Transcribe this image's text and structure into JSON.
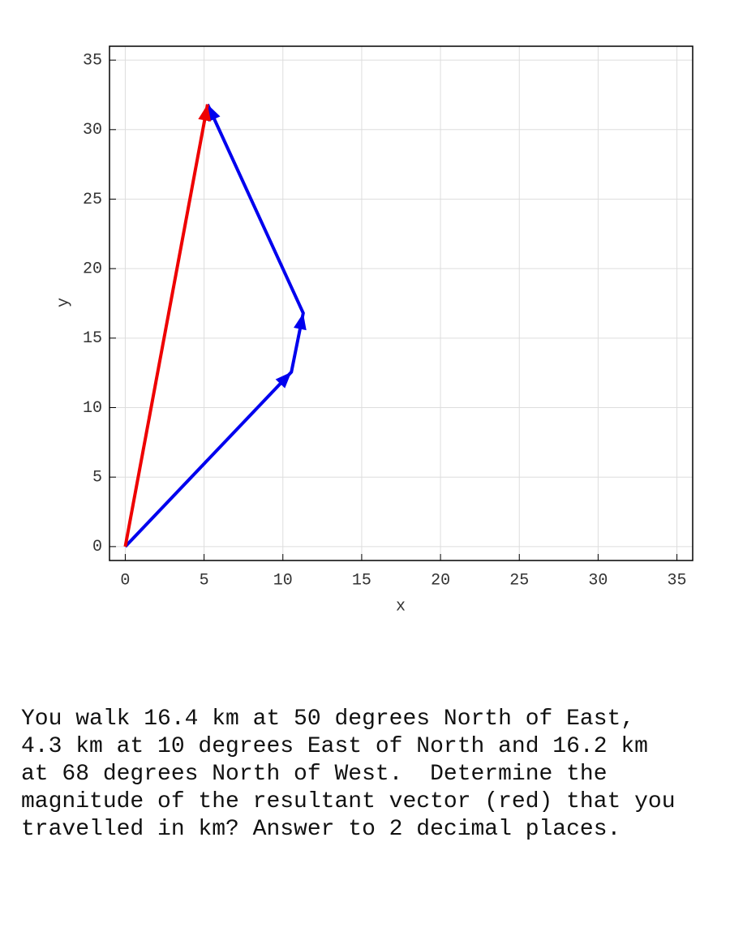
{
  "chart_data": {
    "type": "vector",
    "xlabel": "x",
    "ylabel": "y",
    "xlim": [
      -1,
      36
    ],
    "ylim": [
      -1,
      36
    ],
    "xticks": [
      0,
      5,
      10,
      15,
      20,
      25,
      30,
      35
    ],
    "yticks": [
      0,
      5,
      10,
      15,
      20,
      25,
      30,
      35
    ],
    "grid": true,
    "series": [
      {
        "color": "#0000ee",
        "x": [
          0,
          10.54,
          11.29,
          5.22
        ],
        "values": [
          0,
          12.56,
          16.8,
          31.82
        ]
      },
      {
        "color": "#ee0000",
        "x": [
          0,
          5.22
        ],
        "values": [
          0,
          31.82
        ]
      }
    ]
  },
  "question": [
    "You walk 16.4 km at 50 degrees North of East,",
    "4.3 km at 10 degrees East of North and 16.2 km",
    "at 68 degrees North of West.  Determine the",
    "magnitude of the resultant vector (red) that you",
    "travelled in km? Answer to 2 decimal places."
  ]
}
